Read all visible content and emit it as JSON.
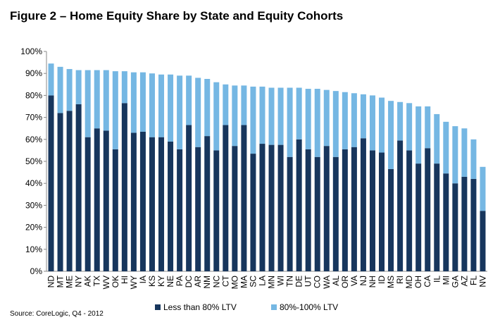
{
  "chart_data": {
    "type": "stacked_bar",
    "title": "Figure 2 – Home Equity Share by State and Equity Cohorts",
    "source": "Source: CoreLogic, Q4 - 2012",
    "categories": [
      "ND",
      "MT",
      "ME",
      "NY",
      "AK",
      "TX",
      "WV",
      "OK",
      "HI",
      "WY",
      "IA",
      "KS",
      "KY",
      "NE",
      "PA",
      "DC",
      "AR",
      "NM",
      "NC",
      "CT",
      "MO",
      "MA",
      "SC",
      "LA",
      "MN",
      "WI",
      "TN",
      "DE",
      "UT",
      "CO",
      "WA",
      "AL",
      "OR",
      "VA",
      "NJ",
      "NH",
      "ID",
      "MS",
      "RI",
      "MD",
      "OH",
      "CA",
      "IL",
      "MI",
      "GA",
      "AZ",
      "FL",
      "NV"
    ],
    "series": [
      {
        "name": "Less than 80% LTV",
        "color": "#17365d",
        "values": [
          80,
          72,
          73,
          76,
          61,
          65,
          64,
          55.5,
          76.5,
          63,
          63.5,
          61,
          61,
          59,
          55.5,
          66.5,
          56.5,
          61.5,
          55,
          66.5,
          57,
          66.5,
          53.5,
          58,
          57.5,
          57.5,
          52,
          60,
          55.5,
          52,
          57,
          52,
          55.5,
          56.5,
          60.5,
          55,
          54,
          46.5,
          59.5,
          55,
          49,
          56,
          49,
          44.5,
          40,
          43,
          42,
          27.5
        ]
      },
      {
        "name": "80%-100% LTV",
        "color": "#75b7e3",
        "values": [
          14.5,
          21,
          19,
          15.5,
          30.5,
          26.5,
          27.5,
          35.5,
          14.5,
          27.5,
          27,
          29,
          28.5,
          30.5,
          33.5,
          22.5,
          31.5,
          26,
          31,
          18.5,
          27.5,
          18,
          30.5,
          26,
          26,
          26,
          31.5,
          23.5,
          27.5,
          31,
          25.5,
          30,
          26,
          24.5,
          20,
          25,
          25,
          31,
          17.5,
          21.5,
          26,
          19,
          22.5,
          23.5,
          26,
          22,
          18,
          20
        ]
      }
    ],
    "ylim": [
      0,
      100
    ],
    "yticks": [
      {
        "value": 0,
        "label": "0%"
      },
      {
        "value": 10,
        "label": "10%"
      },
      {
        "value": 20,
        "label": "20%"
      },
      {
        "value": 30,
        "label": "30%"
      },
      {
        "value": 40,
        "label": "40%"
      },
      {
        "value": 50,
        "label": "50%"
      },
      {
        "value": 60,
        "label": "60%"
      },
      {
        "value": 70,
        "label": "70%"
      },
      {
        "value": 80,
        "label": "80%"
      },
      {
        "value": 90,
        "label": "90%"
      },
      {
        "value": 100,
        "label": "100%"
      }
    ],
    "legend": "bottom"
  }
}
